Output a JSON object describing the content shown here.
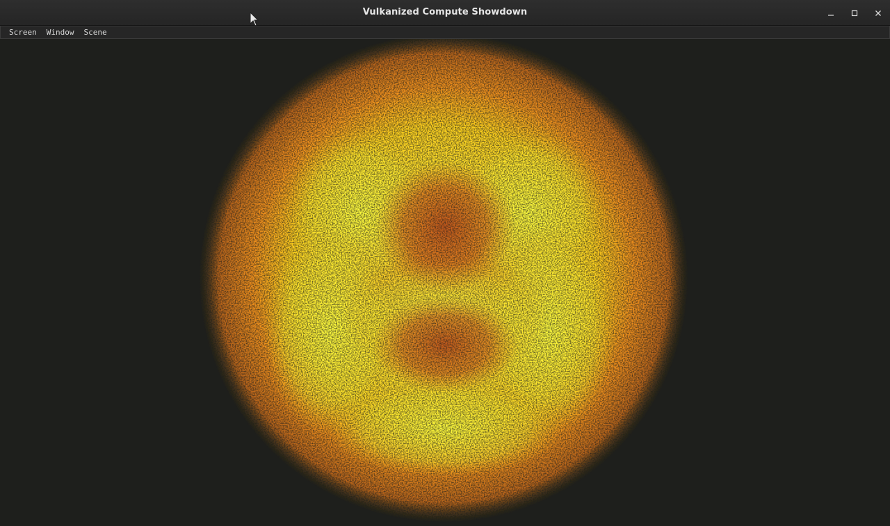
{
  "window": {
    "title": "Vulkanized Compute Showdown"
  },
  "controls": {
    "minimize": "minimize-icon",
    "maximize": "maximize-icon",
    "close": "close-icon"
  },
  "menu": {
    "items": [
      {
        "label": "Screen"
      },
      {
        "label": "Window"
      },
      {
        "label": "Scene"
      }
    ]
  },
  "scene": {
    "background": "#1e1f1c",
    "particle_colors": [
      "#ffff33",
      "#ffd21e",
      "#ff9a1a",
      "#e8601a",
      "#9a7a1a"
    ]
  }
}
